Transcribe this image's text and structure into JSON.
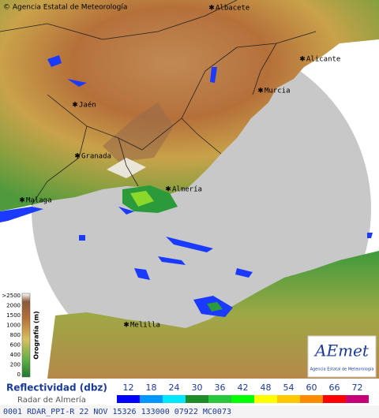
{
  "header": {
    "copyright": "© Agencia Estatal de Meteorología"
  },
  "cities": [
    {
      "label": "Albacete"
    },
    {
      "label": "Alicante"
    },
    {
      "label": "Murcia"
    },
    {
      "label": "Jaén"
    },
    {
      "label": "Granada"
    },
    {
      "label": "Almería"
    },
    {
      "label": "Malaga"
    },
    {
      "label": "Melilla"
    }
  ],
  "orography": {
    "title": "Orografía (m)",
    "labels": [
      ">2500",
      "2000",
      "1500",
      "1000",
      "800",
      "600",
      "400",
      "200",
      "0"
    ]
  },
  "logo": {
    "name": "AEmet",
    "subtitle": "Agencia Estatal de Meteorología"
  },
  "legend": {
    "title": "Reflectividad (dbz)",
    "subtitle": "Radar de Almería",
    "values": [
      12,
      18,
      24,
      30,
      36,
      42,
      48,
      54,
      60,
      66,
      72
    ],
    "colors": [
      "#0000ff",
      "#0096ff",
      "#00e6ff",
      "#1e8c28",
      "#28c83c",
      "#00ff00",
      "#ffff00",
      "#ffc800",
      "#ff8c00",
      "#ff0000",
      "#c80078"
    ]
  },
  "status": "0001 RDAR_PPI-R  22 NOV 15326 133000 07922 MC0073"
}
